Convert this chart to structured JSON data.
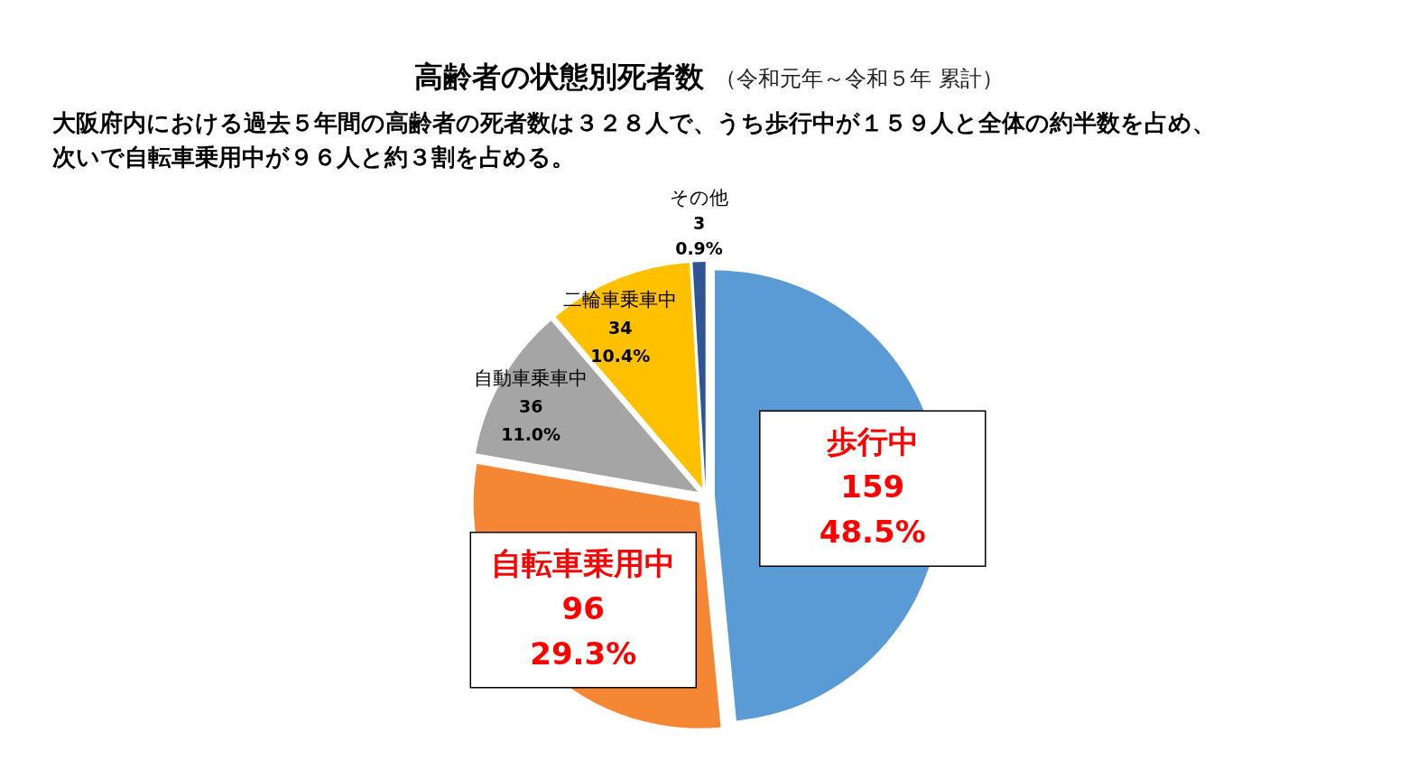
{
  "chart_data": {
    "type": "pie",
    "title": "高齢者の状態別死者数",
    "subtitle": "（令和元年～令和５年 累計）",
    "annotations": [
      "大阪府内における過去５年間の高齢者の死者数は３２８人で、うち歩行中が１５９人と全体の約半数を占め、次いで自転車乗用中が９６人と約３割を占める。"
    ],
    "categories": [
      "歩行中",
      "自転車乗用中",
      "自動車乗車中",
      "二輪車乗車中",
      "その他"
    ],
    "values": [
      159,
      96,
      36,
      34,
      3
    ],
    "colors": [
      "#5b9bd5",
      "#f58634",
      "#a5a5a5",
      "#ffc000",
      "#2f5597"
    ],
    "value_labels": [
      "159\n48.5%",
      "96\n29.3%",
      "36\n11.0%",
      "34\n10.4%",
      "3\n0.9%"
    ]
  }
}
